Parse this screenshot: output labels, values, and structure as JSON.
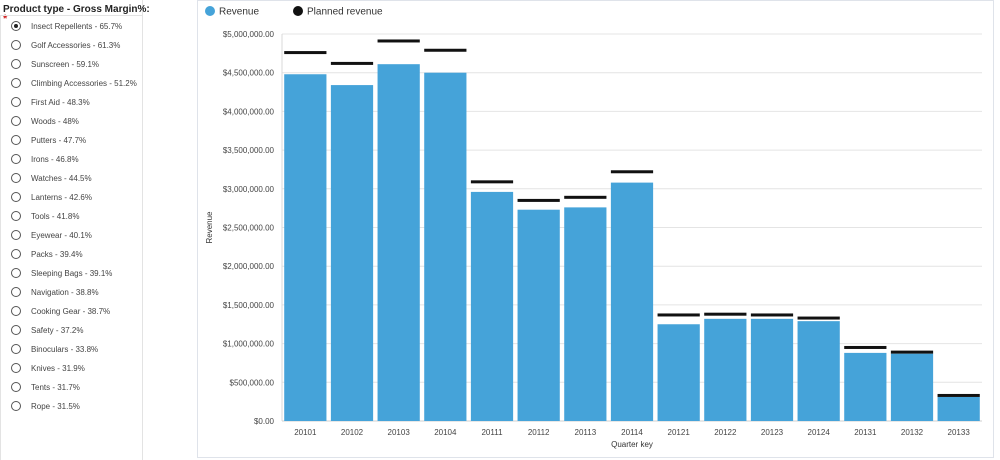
{
  "filter": {
    "title": "Product type - Gross Margin%:",
    "required_mark": "*",
    "selected_index": 0,
    "options": [
      "Insect Repellents - 65.7%",
      "Golf Accessories - 61.3%",
      "Sunscreen - 59.1%",
      "Climbing Accessories - 51.2%",
      "First Aid - 48.3%",
      "Woods - 48%",
      "Putters - 47.7%",
      "Irons - 46.8%",
      "Watches - 44.5%",
      "Lanterns - 42.6%",
      "Tools - 41.8%",
      "Eyewear - 40.1%",
      "Packs - 39.4%",
      "Sleeping Bags - 39.1%",
      "Navigation - 38.8%",
      "Cooking Gear - 38.7%",
      "Safety - 37.2%",
      "Binoculars - 33.8%",
      "Knives - 31.9%",
      "Tents - 31.7%",
      "Rope - 31.5%"
    ]
  },
  "chart_data": {
    "type": "bar",
    "xlabel": "Quarter key",
    "ylabel": "Revenue",
    "ylim": [
      0,
      5000000
    ],
    "yticks": [
      0,
      500000,
      1000000,
      1500000,
      2000000,
      2500000,
      3000000,
      3500000,
      4000000,
      4500000,
      5000000
    ],
    "ytick_labels": [
      "$0.00",
      "$500,000.00",
      "$1,000,000.00",
      "$1,500,000.00",
      "$2,000,000.00",
      "$2,500,000.00",
      "$3,000,000.00",
      "$3,500,000.00",
      "$4,000,000.00",
      "$4,500,000.00",
      "$5,000,000.00"
    ],
    "grid": true,
    "legend_position": "top-left",
    "categories": [
      "20101",
      "20102",
      "20103",
      "20104",
      "20111",
      "20112",
      "20113",
      "20114",
      "20121",
      "20122",
      "20123",
      "20124",
      "20131",
      "20132",
      "20133"
    ],
    "series": [
      {
        "name": "Revenue",
        "mark": "bar",
        "color": "#45a3d9",
        "values": [
          4480000,
          4340000,
          4610000,
          4500000,
          2960000,
          2730000,
          2760000,
          3080000,
          1250000,
          1320000,
          1320000,
          1290000,
          880000,
          870000,
          310000
        ]
      },
      {
        "name": "Planned revenue",
        "mark": "target-line",
        "color": "#111111",
        "values": [
          4760000,
          4620000,
          4910000,
          4790000,
          3090000,
          2850000,
          2890000,
          3220000,
          1370000,
          1380000,
          1370000,
          1330000,
          950000,
          890000,
          330000
        ]
      }
    ]
  }
}
